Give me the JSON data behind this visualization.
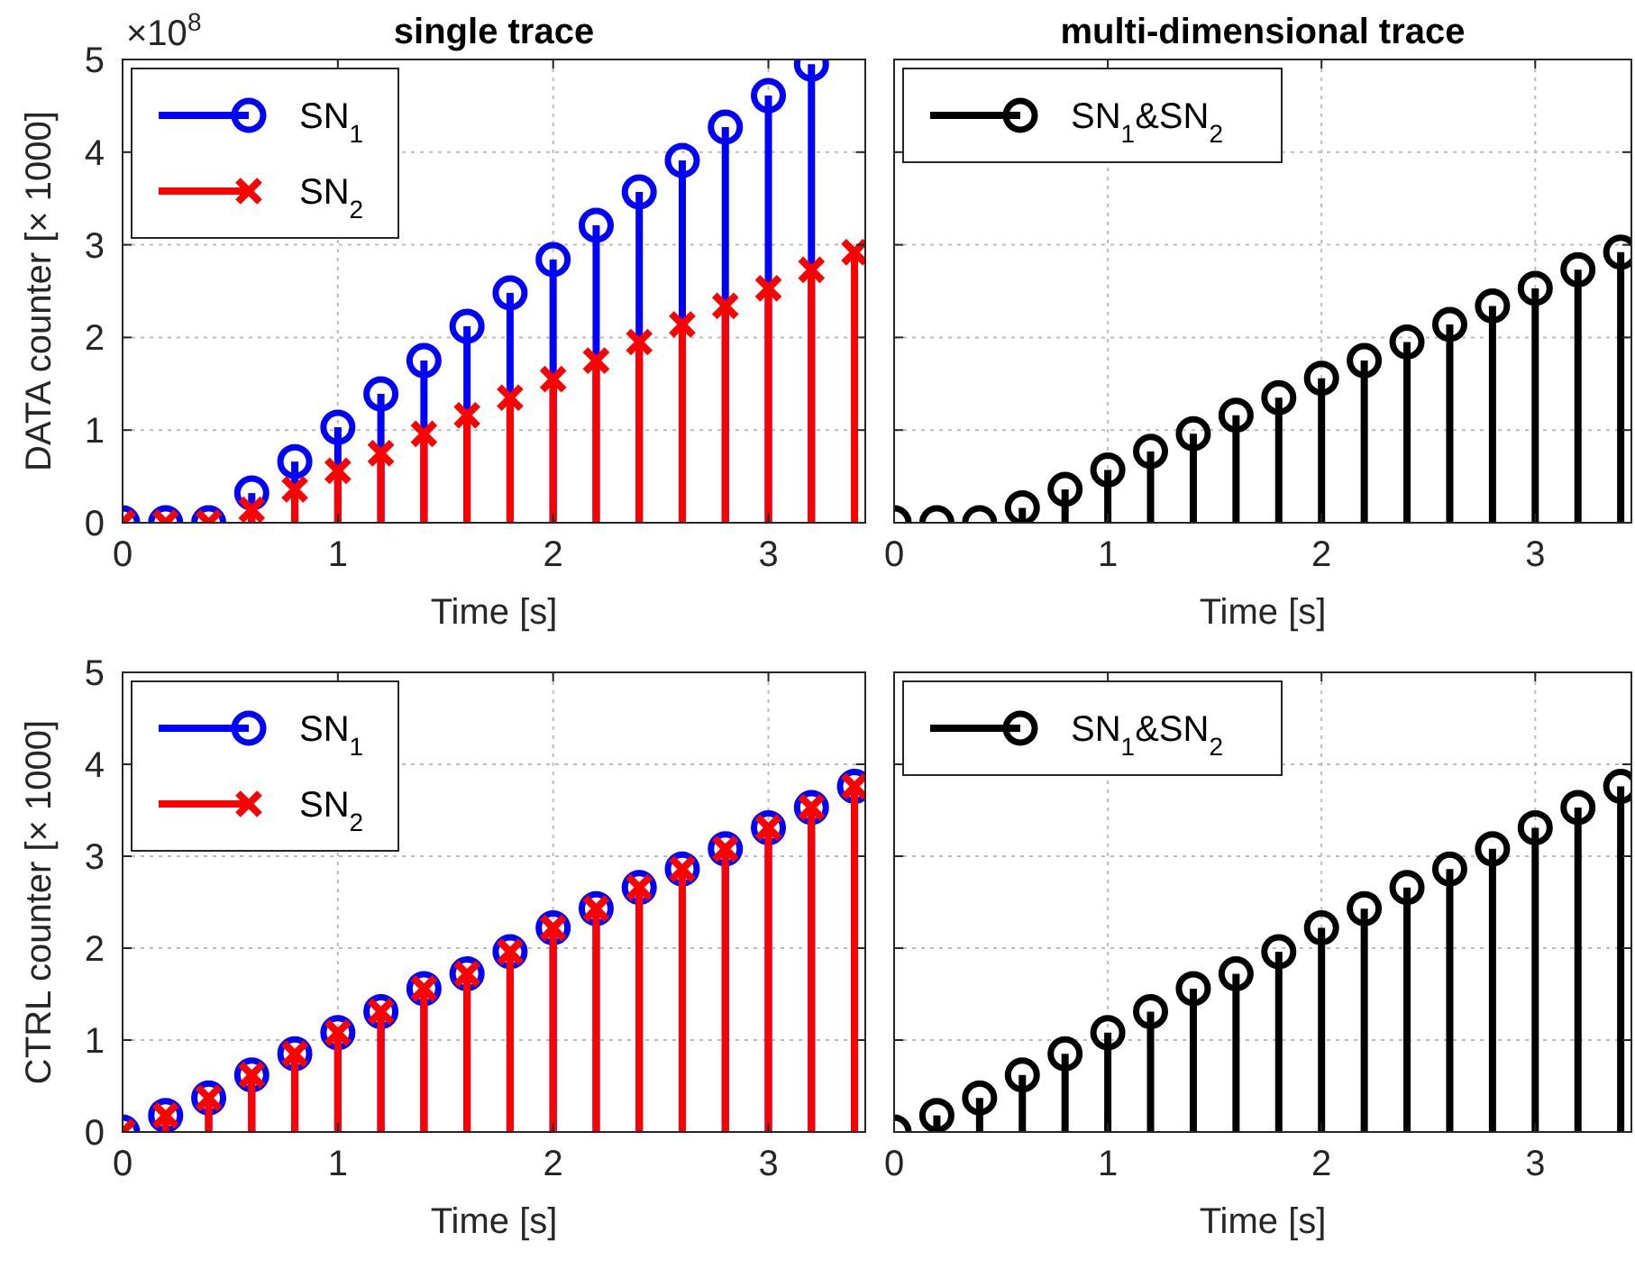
{
  "chart_data": [
    {
      "type": "lollipop",
      "title": "single trace",
      "xlabel": "Time [s]",
      "ylabel": "DATA counter [× 1000]",
      "annotations": [
        "×10$^{8}$"
      ],
      "x": [
        0,
        0.2,
        0.4,
        0.6,
        0.8,
        1.0,
        1.2,
        1.4,
        1.6,
        1.8,
        2.0,
        2.2,
        2.4,
        2.6,
        2.8,
        3.0,
        3.2,
        3.4
      ],
      "xlim": [
        0,
        3.45
      ],
      "xticks": [
        0,
        1,
        2,
        3
      ],
      "ylim": [
        0,
        5
      ],
      "yticks": [
        0,
        1,
        2,
        3,
        4,
        5
      ],
      "grid": true,
      "legend": "top left",
      "series": [
        {
          "name": "SN$_{1}$",
          "color": "#0000ff",
          "marker": "circle",
          "values": [
            0,
            0,
            0,
            0.32,
            0.66,
            1.03,
            1.39,
            1.75,
            2.12,
            2.48,
            2.84,
            3.21,
            3.57,
            3.91,
            4.27,
            4.61,
            4.95,
            null
          ]
        },
        {
          "name": "SN$_{2}$",
          "color": "#ff0000",
          "marker": "cross",
          "values": [
            0,
            0,
            0,
            0.14,
            0.36,
            0.56,
            0.75,
            0.96,
            1.16,
            1.35,
            1.55,
            1.75,
            1.95,
            2.14,
            2.34,
            2.53,
            2.73,
            2.92
          ]
        }
      ]
    },
    {
      "type": "lollipop",
      "title": "multi-dimensional trace",
      "xlabel": "Time [s]",
      "x": [
        0,
        0.2,
        0.4,
        0.6,
        0.8,
        1.0,
        1.2,
        1.4,
        1.6,
        1.8,
        2.0,
        2.2,
        2.4,
        2.6,
        2.8,
        3.0,
        3.2,
        3.4
      ],
      "xlim": [
        0,
        3.45
      ],
      "xticks": [
        0,
        1,
        2,
        3
      ],
      "ylim": [
        0,
        5
      ],
      "yticks": [
        0,
        1,
        2,
        3,
        4,
        5
      ],
      "tick_labels": "x",
      "grid": true,
      "legend": "top left",
      "series": [
        {
          "name": "SN$_{1}$&SN$_{2}$",
          "color": "#000000",
          "marker": "circle",
          "values": [
            0,
            0,
            0,
            0.16,
            0.36,
            0.57,
            0.77,
            0.96,
            1.16,
            1.35,
            1.56,
            1.75,
            1.95,
            2.14,
            2.34,
            2.53,
            2.73,
            2.92
          ]
        }
      ]
    },
    {
      "type": "lollipop",
      "xlabel": "Time [s]",
      "ylabel": "CTRL counter [× 1000]",
      "x": [
        0,
        0.2,
        0.4,
        0.6,
        0.8,
        1.0,
        1.2,
        1.4,
        1.6,
        1.8,
        2.0,
        2.2,
        2.4,
        2.6,
        2.8,
        3.0,
        3.2,
        3.4
      ],
      "xlim": [
        0,
        3.45
      ],
      "xticks": [
        0,
        1,
        2,
        3
      ],
      "ylim": [
        0,
        5
      ],
      "yticks": [
        0,
        1,
        2,
        3,
        4,
        5
      ],
      "grid": true,
      "legend": "top left",
      "series": [
        {
          "name": "SN$_{1}$",
          "color": "#0000ff",
          "marker": "circle",
          "values": [
            0,
            0.18,
            0.37,
            0.62,
            0.85,
            1.08,
            1.31,
            1.56,
            1.72,
            1.96,
            2.22,
            2.43,
            2.66,
            2.86,
            3.08,
            3.31,
            3.53,
            3.76
          ]
        },
        {
          "name": "SN$_{2}$",
          "color": "#ff0000",
          "marker": "cross",
          "values": [
            0,
            0.18,
            0.37,
            0.62,
            0.85,
            1.08,
            1.31,
            1.56,
            1.72,
            1.96,
            2.22,
            2.43,
            2.66,
            2.86,
            3.08,
            3.31,
            3.53,
            3.76
          ]
        }
      ]
    },
    {
      "type": "lollipop",
      "xlabel": "Time [s]",
      "x": [
        0,
        0.2,
        0.4,
        0.6,
        0.8,
        1.0,
        1.2,
        1.4,
        1.6,
        1.8,
        2.0,
        2.2,
        2.4,
        2.6,
        2.8,
        3.0,
        3.2,
        3.4
      ],
      "xlim": [
        0,
        3.45
      ],
      "xticks": [
        0,
        1,
        2,
        3
      ],
      "ylim": [
        0,
        5
      ],
      "yticks": [
        0,
        1,
        2,
        3,
        4,
        5
      ],
      "tick_labels": "x",
      "grid": true,
      "legend": "top left",
      "series": [
        {
          "name": "SN$_{1}$&SN$_{2}$",
          "color": "#000000",
          "marker": "circle",
          "values": [
            0,
            0.18,
            0.37,
            0.62,
            0.85,
            1.08,
            1.31,
            1.56,
            1.72,
            1.96,
            2.22,
            2.43,
            2.66,
            2.86,
            3.08,
            3.31,
            3.53,
            3.76
          ]
        }
      ]
    }
  ]
}
